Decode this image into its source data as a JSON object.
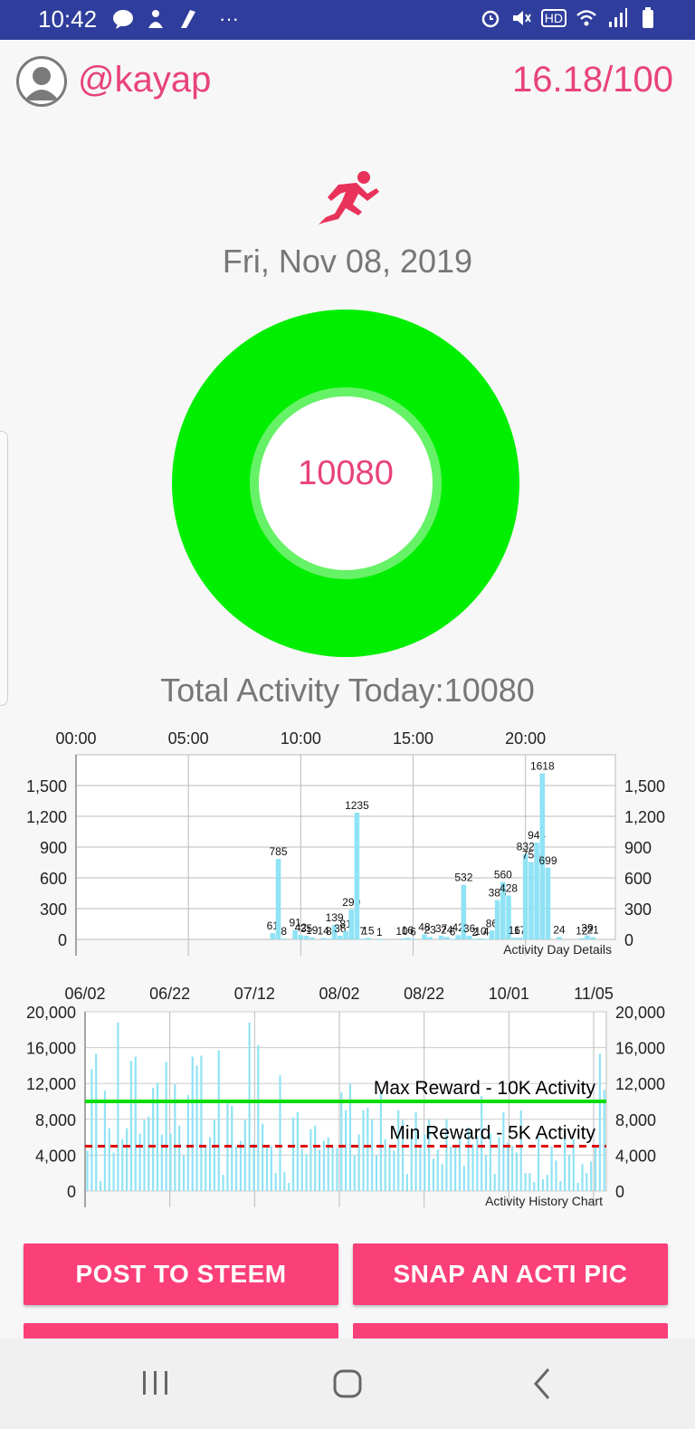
{
  "status_bar": {
    "time": "10:42",
    "left_icons": [
      "talk-icon",
      "person-icon",
      "app-icon",
      "more-dots-icon"
    ],
    "right_icons": [
      "alarm-icon",
      "mute-icon",
      "hd-icon",
      "wifi-icon",
      "signal-icon",
      "battery-icon"
    ],
    "more": "···",
    "hd": "HD"
  },
  "header": {
    "username": "@kayap",
    "score": "16.18/100"
  },
  "date": "Fri, Nov 08, 2019",
  "ring": {
    "value": "10080",
    "progress_fraction": 1.0,
    "color": "#00ee00"
  },
  "total_label": "Total Activity Today:10080",
  "colors": {
    "accent": "#e8437a",
    "button": "#fb3f79",
    "bar": "#8fe3f5",
    "max_line": "#00dd00",
    "min_line": "#dd0000"
  },
  "chart_data": [
    {
      "type": "bar",
      "legend": "Activity Day Details",
      "x_tick_labels": [
        "00:00",
        "05:00",
        "10:00",
        "15:00",
        "20:00"
      ],
      "y_tick_labels": [
        "0",
        "300",
        "600",
        "900",
        "1,200",
        "1,500"
      ],
      "ylim": [
        0,
        1800
      ],
      "xlim_hours": [
        0,
        24
      ],
      "bars": [
        {
          "x": 8.75,
          "y": 61,
          "label": "61"
        },
        {
          "x": 9.0,
          "y": 785,
          "label": "785"
        },
        {
          "x": 9.25,
          "y": 8,
          "label": "8"
        },
        {
          "x": 9.75,
          "y": 91,
          "label": "91"
        },
        {
          "x": 10.0,
          "y": 42,
          "label": "42"
        },
        {
          "x": 10.25,
          "y": 35,
          "label": "35"
        },
        {
          "x": 10.5,
          "y": 19,
          "label": "19"
        },
        {
          "x": 11.0,
          "y": 14,
          "label": "14"
        },
        {
          "x": 11.25,
          "y": 8,
          "label": "8"
        },
        {
          "x": 11.5,
          "y": 139,
          "label": "139"
        },
        {
          "x": 11.75,
          "y": 36,
          "label": "36"
        },
        {
          "x": 12.0,
          "y": 81,
          "label": "81"
        },
        {
          "x": 12.25,
          "y": 290,
          "label": "290"
        },
        {
          "x": 12.5,
          "y": 1235,
          "label": "1235"
        },
        {
          "x": 12.75,
          "y": 7,
          "label": "7"
        },
        {
          "x": 13.0,
          "y": 15,
          "label": "15"
        },
        {
          "x": 13.5,
          "y": 1,
          "label": "1"
        },
        {
          "x": 14.5,
          "y": 10,
          "label": "10"
        },
        {
          "x": 14.75,
          "y": 16,
          "label": "16"
        },
        {
          "x": 15.0,
          "y": 6,
          "label": "6"
        },
        {
          "x": 15.5,
          "y": 48,
          "label": "48"
        },
        {
          "x": 15.75,
          "y": 23,
          "label": "23"
        },
        {
          "x": 16.25,
          "y": 37,
          "label": "37"
        },
        {
          "x": 16.5,
          "y": 24,
          "label": "24"
        },
        {
          "x": 16.75,
          "y": 6,
          "label": "6"
        },
        {
          "x": 17.0,
          "y": 42,
          "label": "42"
        },
        {
          "x": 17.25,
          "y": 532,
          "label": "532"
        },
        {
          "x": 17.5,
          "y": 36,
          "label": "36"
        },
        {
          "x": 17.75,
          "y": 2,
          "label": "2"
        },
        {
          "x": 18.0,
          "y": 10,
          "label": "10"
        },
        {
          "x": 18.25,
          "y": 4,
          "label": "4"
        },
        {
          "x": 18.5,
          "y": 86,
          "label": "86"
        },
        {
          "x": 18.75,
          "y": 383,
          "label": "383"
        },
        {
          "x": 19.0,
          "y": 560,
          "label": "560"
        },
        {
          "x": 19.25,
          "y": 428,
          "label": "428"
        },
        {
          "x": 19.5,
          "y": 16,
          "label": "16"
        },
        {
          "x": 19.75,
          "y": 17,
          "label": "17"
        },
        {
          "x": 20.0,
          "y": 832,
          "label": "832"
        },
        {
          "x": 20.25,
          "y": 754,
          "label": "754"
        },
        {
          "x": 20.5,
          "y": 944,
          "label": "944"
        },
        {
          "x": 20.75,
          "y": 1618,
          "label": "1618"
        },
        {
          "x": 21.0,
          "y": 699,
          "label": "699"
        },
        {
          "x": 21.5,
          "y": 24,
          "label": "24"
        },
        {
          "x": 22.75,
          "y": 39,
          "label": "39"
        },
        {
          "x": 22.5,
          "y": 12,
          "label": "12"
        },
        {
          "x": 23.0,
          "y": 21,
          "label": "21"
        }
      ]
    },
    {
      "type": "bar",
      "legend": "Activity History Chart",
      "x_tick_labels": [
        "06/02",
        "06/22",
        "07/12",
        "08/02",
        "08/22",
        "10/01",
        "11/05"
      ],
      "y_tick_labels": [
        "0",
        "4,000",
        "8,000",
        "12,000",
        "16,000",
        "20,000"
      ],
      "ylim": [
        0,
        20000
      ],
      "values": [
        4500,
        13600,
        15300,
        1100,
        11200,
        7000,
        4300,
        18800,
        5800,
        7000,
        14500,
        15000,
        6400,
        7900,
        8300,
        11500,
        12100,
        6300,
        14400,
        6400,
        11900,
        7300,
        4000,
        10700,
        15000,
        14000,
        15100,
        5000,
        6000,
        7900,
        15700,
        1800,
        10000,
        9500,
        5000,
        5600,
        7900,
        18800,
        5300,
        16300,
        7500,
        5000,
        5000,
        2000,
        12900,
        2100,
        900,
        8200,
        8800,
        4700,
        4100,
        6900,
        7300,
        4600,
        5600,
        6000,
        5000,
        4800,
        11000,
        9000,
        12000,
        4000,
        6300,
        9000,
        9300,
        8000,
        4000,
        11000,
        5800,
        5000,
        4500,
        9000,
        7900,
        1900,
        6000,
        8800,
        5200,
        6300,
        8000,
        3600,
        4600,
        3000,
        8000,
        5000,
        5000,
        5800,
        2800,
        7100,
        5200,
        6100,
        10600,
        4000,
        6400,
        1900,
        6000,
        8800,
        5400,
        5000,
        4300,
        9000,
        2000,
        2000,
        1000,
        6000,
        1300,
        1800,
        5000,
        3400,
        1100,
        6800,
        4000,
        5800,
        900,
        3000,
        2000,
        3300,
        5000,
        15300,
        11300
      ],
      "lines": [
        {
          "name": "Max Reward - 10K Activity",
          "y": 10000,
          "style": "solid"
        },
        {
          "name": "Min Reward - 5K Activity",
          "y": 5000,
          "style": "dashed"
        }
      ]
    }
  ],
  "buttons": {
    "post": "POST TO STEEM",
    "snap": "SNAP AN ACTI PIC"
  },
  "nav": {
    "recents": "recents-icon",
    "home": "home-icon",
    "back": "back-icon"
  }
}
